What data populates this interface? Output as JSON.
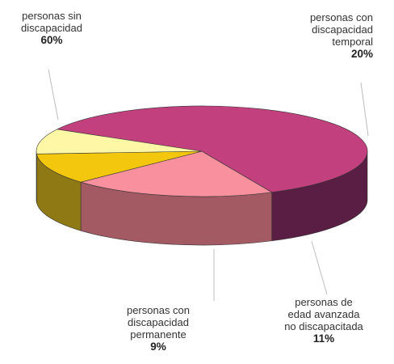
{
  "chart_data": {
    "type": "pie",
    "style": "3d",
    "title": "",
    "slices": [
      {
        "label": "personas sin discapacidad",
        "value": 60,
        "display": "60%",
        "color": "#c2407e",
        "side_color": "#5a1d43"
      },
      {
        "label": "personas con discapacidad temporal",
        "value": 20,
        "display": "20%",
        "color": "#f9909e",
        "side_color": "#a45a63"
      },
      {
        "label": "personas de edad avanzada no discapacitada",
        "value": 11,
        "display": "11%",
        "color": "#f3c70d",
        "side_color": "#8f7914"
      },
      {
        "label": "personas con discapacidad permanente",
        "value": 9,
        "display": "9%",
        "color": "#fdf7a6",
        "side_color": "#a4ae7b"
      }
    ]
  },
  "labels": {
    "sin": {
      "lines": [
        "personas sin",
        "discapacidad"
      ],
      "pct": "60%"
    },
    "temporal": {
      "lines": [
        "personas con",
        "discapacidad",
        "temporal"
      ],
      "pct": "20%"
    },
    "edad": {
      "lines": [
        "personas de",
        "edad avanzada",
        "no discapacitada"
      ],
      "pct": "11%"
    },
    "permanente": {
      "lines": [
        "personas con",
        "discapacidad",
        "permanente"
      ],
      "pct": "9%"
    }
  }
}
